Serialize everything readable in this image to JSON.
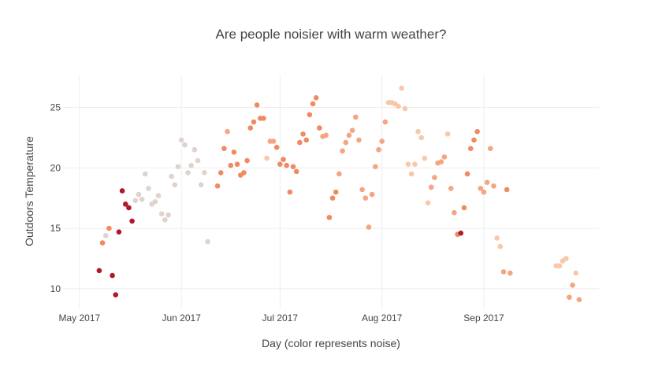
{
  "chart_data": {
    "type": "scatter",
    "title": "Are people noisier with warm weather?",
    "xlabel": "Day (color represents noise)",
    "ylabel": "Outdoors Temperature",
    "x_tick_labels": [
      "May 2017",
      "Jun 2017",
      "Jul 2017",
      "Aug 2017",
      "Sep 2017"
    ],
    "x_tick_dates": [
      "2017-05-01",
      "2017-06-01",
      "2017-07-01",
      "2017-08-01",
      "2017-09-01"
    ],
    "y_ticks": [
      10,
      15,
      20,
      25
    ],
    "xlim": [
      "2017-04-26",
      "2017-10-06"
    ],
    "ylim": [
      8.3,
      27.7
    ],
    "grid": true,
    "legend": "none",
    "colors": {
      "red": "#b2182b",
      "light_gray": "#dfd3cd",
      "orange": "#ef8a62",
      "peach": "#f4a582",
      "light_peach": "#f8c8a8"
    },
    "points": [
      {
        "x": "2017-05-07",
        "y": 11.5,
        "c": "red"
      },
      {
        "x": "2017-05-08",
        "y": 13.8,
        "c": "orange"
      },
      {
        "x": "2017-05-09",
        "y": 14.4,
        "c": "light_gray"
      },
      {
        "x": "2017-05-10",
        "y": 15.0,
        "c": "orange"
      },
      {
        "x": "2017-05-11",
        "y": 11.1,
        "c": "red"
      },
      {
        "x": "2017-05-12",
        "y": 9.5,
        "c": "red"
      },
      {
        "x": "2017-05-13",
        "y": 14.7,
        "c": "red"
      },
      {
        "x": "2017-05-14",
        "y": 18.1,
        "c": "red"
      },
      {
        "x": "2017-05-15",
        "y": 17.0,
        "c": "red"
      },
      {
        "x": "2017-05-16",
        "y": 16.7,
        "c": "red"
      },
      {
        "x": "2017-05-17",
        "y": 15.6,
        "c": "red"
      },
      {
        "x": "2017-05-18",
        "y": 17.3,
        "c": "light_gray"
      },
      {
        "x": "2017-05-19",
        "y": 17.8,
        "c": "light_gray"
      },
      {
        "x": "2017-05-20",
        "y": 17.4,
        "c": "light_gray"
      },
      {
        "x": "2017-05-21",
        "y": 19.5,
        "c": "light_gray"
      },
      {
        "x": "2017-05-22",
        "y": 18.3,
        "c": "light_gray"
      },
      {
        "x": "2017-05-23",
        "y": 17.0,
        "c": "light_gray"
      },
      {
        "x": "2017-05-24",
        "y": 17.2,
        "c": "light_gray"
      },
      {
        "x": "2017-05-25",
        "y": 17.7,
        "c": "light_gray"
      },
      {
        "x": "2017-05-26",
        "y": 16.2,
        "c": "light_gray"
      },
      {
        "x": "2017-05-27",
        "y": 15.7,
        "c": "light_gray"
      },
      {
        "x": "2017-05-28",
        "y": 16.1,
        "c": "light_gray"
      },
      {
        "x": "2017-05-29",
        "y": 19.3,
        "c": "light_gray"
      },
      {
        "x": "2017-05-30",
        "y": 18.6,
        "c": "light_gray"
      },
      {
        "x": "2017-05-31",
        "y": 20.1,
        "c": "light_gray"
      },
      {
        "x": "2017-06-01",
        "y": 22.3,
        "c": "light_gray"
      },
      {
        "x": "2017-06-02",
        "y": 21.9,
        "c": "light_gray"
      },
      {
        "x": "2017-06-03",
        "y": 19.6,
        "c": "light_gray"
      },
      {
        "x": "2017-06-04",
        "y": 20.2,
        "c": "light_gray"
      },
      {
        "x": "2017-06-05",
        "y": 21.5,
        "c": "light_gray"
      },
      {
        "x": "2017-06-06",
        "y": 20.6,
        "c": "light_gray"
      },
      {
        "x": "2017-06-07",
        "y": 18.6,
        "c": "light_gray"
      },
      {
        "x": "2017-06-08",
        "y": 19.6,
        "c": "light_gray"
      },
      {
        "x": "2017-06-09",
        "y": 13.9,
        "c": "light_gray"
      },
      {
        "x": "2017-06-12",
        "y": 18.5,
        "c": "orange"
      },
      {
        "x": "2017-06-13",
        "y": 19.6,
        "c": "orange"
      },
      {
        "x": "2017-06-14",
        "y": 21.6,
        "c": "orange"
      },
      {
        "x": "2017-06-15",
        "y": 23.0,
        "c": "peach"
      },
      {
        "x": "2017-06-16",
        "y": 20.2,
        "c": "orange"
      },
      {
        "x": "2017-06-17",
        "y": 21.3,
        "c": "orange"
      },
      {
        "x": "2017-06-18",
        "y": 20.3,
        "c": "orange"
      },
      {
        "x": "2017-06-19",
        "y": 19.4,
        "c": "orange"
      },
      {
        "x": "2017-06-20",
        "y": 19.6,
        "c": "orange"
      },
      {
        "x": "2017-06-21",
        "y": 20.6,
        "c": "orange"
      },
      {
        "x": "2017-06-22",
        "y": 23.3,
        "c": "orange"
      },
      {
        "x": "2017-06-23",
        "y": 23.8,
        "c": "orange"
      },
      {
        "x": "2017-06-24",
        "y": 25.2,
        "c": "orange"
      },
      {
        "x": "2017-06-25",
        "y": 24.1,
        "c": "orange"
      },
      {
        "x": "2017-06-26",
        "y": 24.1,
        "c": "orange"
      },
      {
        "x": "2017-06-27",
        "y": 20.8,
        "c": "light_peach"
      },
      {
        "x": "2017-06-28",
        "y": 22.2,
        "c": "peach"
      },
      {
        "x": "2017-06-29",
        "y": 22.2,
        "c": "peach"
      },
      {
        "x": "2017-06-30",
        "y": 21.7,
        "c": "orange"
      },
      {
        "x": "2017-07-01",
        "y": 20.3,
        "c": "orange"
      },
      {
        "x": "2017-07-02",
        "y": 20.7,
        "c": "orange"
      },
      {
        "x": "2017-07-03",
        "y": 20.2,
        "c": "orange"
      },
      {
        "x": "2017-07-04",
        "y": 18.0,
        "c": "orange"
      },
      {
        "x": "2017-07-05",
        "y": 20.1,
        "c": "orange"
      },
      {
        "x": "2017-07-06",
        "y": 19.7,
        "c": "orange"
      },
      {
        "x": "2017-07-07",
        "y": 22.1,
        "c": "orange"
      },
      {
        "x": "2017-07-08",
        "y": 22.8,
        "c": "orange"
      },
      {
        "x": "2017-07-09",
        "y": 22.3,
        "c": "orange"
      },
      {
        "x": "2017-07-10",
        "y": 24.4,
        "c": "orange"
      },
      {
        "x": "2017-07-11",
        "y": 25.3,
        "c": "orange"
      },
      {
        "x": "2017-07-12",
        "y": 25.8,
        "c": "orange"
      },
      {
        "x": "2017-07-13",
        "y": 23.3,
        "c": "orange"
      },
      {
        "x": "2017-07-14",
        "y": 22.6,
        "c": "peach"
      },
      {
        "x": "2017-07-15",
        "y": 22.7,
        "c": "peach"
      },
      {
        "x": "2017-07-16",
        "y": 15.9,
        "c": "orange"
      },
      {
        "x": "2017-07-17",
        "y": 17.5,
        "c": "orange"
      },
      {
        "x": "2017-07-18",
        "y": 18.0,
        "c": "orange"
      },
      {
        "x": "2017-07-19",
        "y": 19.5,
        "c": "peach"
      },
      {
        "x": "2017-07-20",
        "y": 21.4,
        "c": "peach"
      },
      {
        "x": "2017-07-21",
        "y": 22.1,
        "c": "peach"
      },
      {
        "x": "2017-07-22",
        "y": 22.7,
        "c": "peach"
      },
      {
        "x": "2017-07-23",
        "y": 23.1,
        "c": "peach"
      },
      {
        "x": "2017-07-24",
        "y": 24.2,
        "c": "peach"
      },
      {
        "x": "2017-07-25",
        "y": 22.3,
        "c": "peach"
      },
      {
        "x": "2017-07-26",
        "y": 18.2,
        "c": "peach"
      },
      {
        "x": "2017-07-27",
        "y": 17.5,
        "c": "peach"
      },
      {
        "x": "2017-07-28",
        "y": 15.1,
        "c": "peach"
      },
      {
        "x": "2017-07-29",
        "y": 17.8,
        "c": "peach"
      },
      {
        "x": "2017-07-30",
        "y": 20.1,
        "c": "peach"
      },
      {
        "x": "2017-07-31",
        "y": 21.5,
        "c": "peach"
      },
      {
        "x": "2017-08-01",
        "y": 22.2,
        "c": "peach"
      },
      {
        "x": "2017-08-02",
        "y": 23.8,
        "c": "peach"
      },
      {
        "x": "2017-08-03",
        "y": 25.4,
        "c": "light_peach"
      },
      {
        "x": "2017-08-04",
        "y": 25.4,
        "c": "light_peach"
      },
      {
        "x": "2017-08-05",
        "y": 25.3,
        "c": "light_peach"
      },
      {
        "x": "2017-08-06",
        "y": 25.1,
        "c": "light_peach"
      },
      {
        "x": "2017-08-07",
        "y": 26.6,
        "c": "light_peach"
      },
      {
        "x": "2017-08-08",
        "y": 24.9,
        "c": "light_peach"
      },
      {
        "x": "2017-08-09",
        "y": 20.3,
        "c": "light_peach"
      },
      {
        "x": "2017-08-10",
        "y": 19.5,
        "c": "light_peach"
      },
      {
        "x": "2017-08-11",
        "y": 20.3,
        "c": "light_peach"
      },
      {
        "x": "2017-08-12",
        "y": 23.0,
        "c": "light_peach"
      },
      {
        "x": "2017-08-13",
        "y": 22.5,
        "c": "light_peach"
      },
      {
        "x": "2017-08-14",
        "y": 20.8,
        "c": "light_peach"
      },
      {
        "x": "2017-08-15",
        "y": 17.1,
        "c": "light_peach"
      },
      {
        "x": "2017-08-16",
        "y": 18.4,
        "c": "peach"
      },
      {
        "x": "2017-08-17",
        "y": 19.2,
        "c": "peach"
      },
      {
        "x": "2017-08-18",
        "y": 20.4,
        "c": "peach"
      },
      {
        "x": "2017-08-19",
        "y": 20.5,
        "c": "peach"
      },
      {
        "x": "2017-08-20",
        "y": 20.9,
        "c": "peach"
      },
      {
        "x": "2017-08-21",
        "y": 22.8,
        "c": "light_peach"
      },
      {
        "x": "2017-08-22",
        "y": 18.3,
        "c": "peach"
      },
      {
        "x": "2017-08-23",
        "y": 16.3,
        "c": "peach"
      },
      {
        "x": "2017-08-24",
        "y": 14.5,
        "c": "orange"
      },
      {
        "x": "2017-08-25",
        "y": 14.6,
        "c": "red"
      },
      {
        "x": "2017-08-26",
        "y": 16.7,
        "c": "orange"
      },
      {
        "x": "2017-08-27",
        "y": 19.5,
        "c": "orange"
      },
      {
        "x": "2017-08-28",
        "y": 21.6,
        "c": "orange"
      },
      {
        "x": "2017-08-29",
        "y": 22.3,
        "c": "orange"
      },
      {
        "x": "2017-08-30",
        "y": 23.0,
        "c": "orange"
      },
      {
        "x": "2017-08-31",
        "y": 18.3,
        "c": "peach"
      },
      {
        "x": "2017-09-01",
        "y": 18.0,
        "c": "peach"
      },
      {
        "x": "2017-09-02",
        "y": 18.8,
        "c": "peach"
      },
      {
        "x": "2017-09-03",
        "y": 21.6,
        "c": "peach"
      },
      {
        "x": "2017-09-04",
        "y": 18.5,
        "c": "peach"
      },
      {
        "x": "2017-09-05",
        "y": 14.2,
        "c": "light_peach"
      },
      {
        "x": "2017-09-06",
        "y": 13.5,
        "c": "light_peach"
      },
      {
        "x": "2017-09-07",
        "y": 11.4,
        "c": "peach"
      },
      {
        "x": "2017-09-08",
        "y": 18.2,
        "c": "orange"
      },
      {
        "x": "2017-09-09",
        "y": 11.3,
        "c": "peach"
      },
      {
        "x": "2017-09-23",
        "y": 11.9,
        "c": "light_peach"
      },
      {
        "x": "2017-09-24",
        "y": 11.9,
        "c": "light_peach"
      },
      {
        "x": "2017-09-25",
        "y": 12.3,
        "c": "light_peach"
      },
      {
        "x": "2017-09-26",
        "y": 12.5,
        "c": "light_peach"
      },
      {
        "x": "2017-09-27",
        "y": 9.3,
        "c": "peach"
      },
      {
        "x": "2017-09-28",
        "y": 10.3,
        "c": "peach"
      },
      {
        "x": "2017-09-29",
        "y": 11.3,
        "c": "light_peach"
      },
      {
        "x": "2017-09-30",
        "y": 9.1,
        "c": "peach"
      }
    ]
  }
}
